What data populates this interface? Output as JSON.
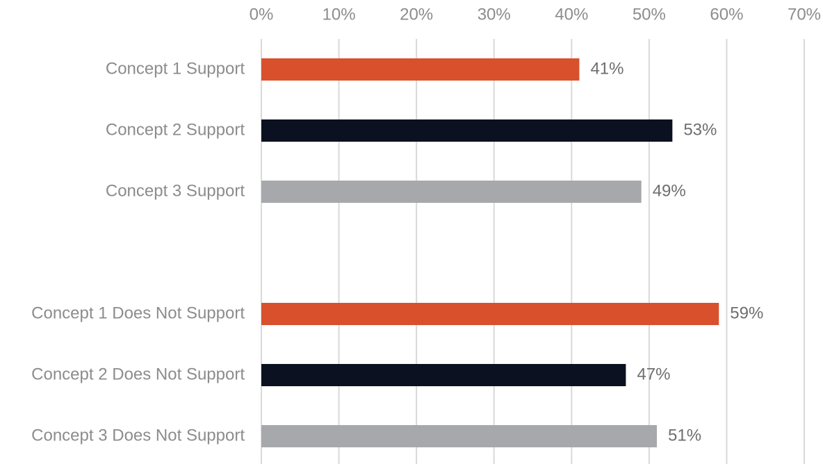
{
  "chart_data": {
    "type": "bar",
    "orientation": "horizontal",
    "categories": [
      "Concept 1 Support",
      "Concept 2 Support",
      "Concept 3 Support",
      "Concept 1 Does Not Support",
      "Concept 2 Does Not Support",
      "Concept 3 Does Not Support"
    ],
    "values": [
      41,
      53,
      49,
      59,
      47,
      51
    ],
    "data_labels": [
      "41%",
      "53%",
      "49%",
      "59%",
      "47%",
      "51%"
    ],
    "bar_colors": [
      "#d9512c",
      "#0b1120",
      "#a7a8ab",
      "#d9512c",
      "#0b1120",
      "#a7a8ab"
    ],
    "xlim": [
      0,
      70
    ],
    "x_ticks": [
      0,
      10,
      20,
      30,
      40,
      50,
      60,
      70
    ],
    "x_tick_labels": [
      "0%",
      "10%",
      "20%",
      "30%",
      "40%",
      "50%",
      "60%",
      "70%"
    ],
    "x_axis_position": "top",
    "grid": true,
    "title": "",
    "xlabel": "",
    "ylabel": ""
  }
}
